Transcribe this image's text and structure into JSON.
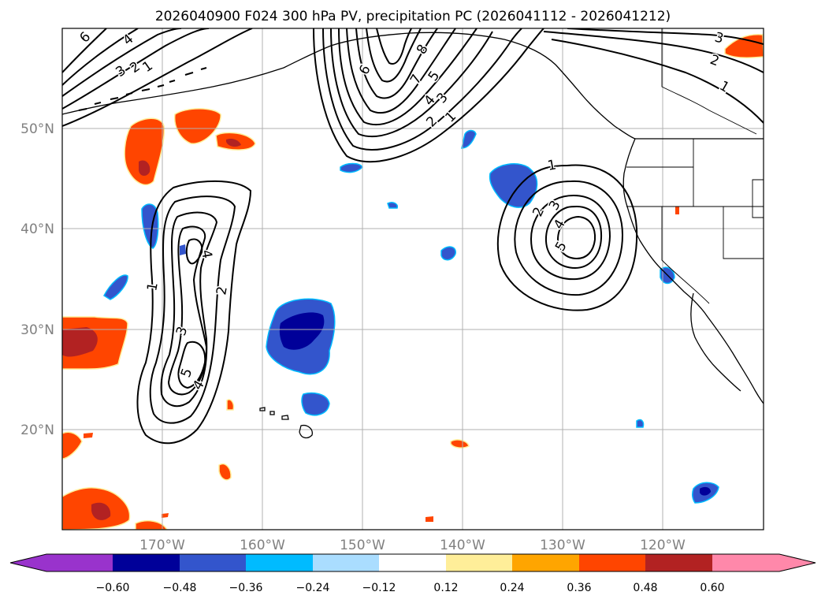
{
  "title": "2026040900 F024 300 hPa PV, precipitation PC (2026041112 - 2026041212)",
  "lon_labels": [
    "170°W",
    "160°W",
    "150°W",
    "140°W",
    "130°W",
    "120°W"
  ],
  "lat_labels": [
    "50°N",
    "40°N",
    "30°N",
    "20°N"
  ],
  "colorbar": {
    "tick_labels": [
      "−0.60",
      "−0.48",
      "−0.36",
      "−0.24",
      "−0.12",
      "0.12",
      "0.24",
      "0.36",
      "0.48",
      "0.60"
    ],
    "colors": [
      "#9933cc",
      "#000099",
      "#3355cc",
      "#00bbff",
      "#aaddff",
      "#ffffff",
      "#ffee99",
      "#ffa500",
      "#ff4500",
      "#b22222",
      "#ff88aa"
    ]
  },
  "contour_labels": {
    "nw": [
      "6",
      "4",
      "3",
      "2",
      "1"
    ],
    "north": [
      "6",
      "8",
      "7",
      "5",
      "4",
      "3",
      "2",
      "1"
    ],
    "west": [
      "4",
      "1",
      "2",
      "3",
      "5",
      "4"
    ],
    "east": [
      "1",
      "2",
      "3",
      "4",
      "5"
    ],
    "ne": [
      "3",
      "2",
      "1"
    ]
  },
  "colors": {
    "negative_strong": "#000099",
    "negative_mid": "#3355cc",
    "negative_weak": "#00bbff",
    "positive_weak": "#ffa500",
    "positive_mid": "#ff4500",
    "positive_strong": "#b22222"
  }
}
